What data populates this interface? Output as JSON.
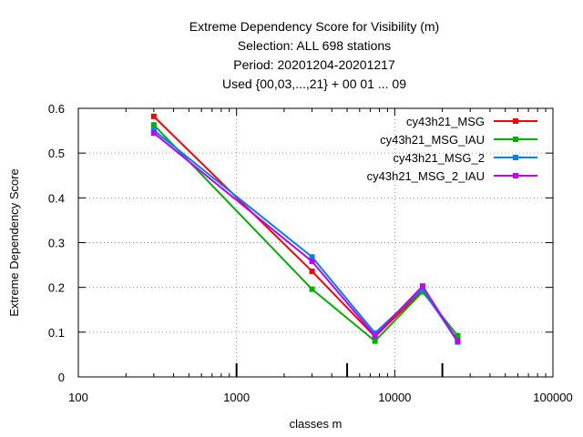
{
  "chart_data": {
    "type": "line",
    "title_lines": [
      "Extreme Dependency Score  for Visibility (m)",
      "Selection: ALL    698 stations",
      "Period: 20201204-20201217",
      "Used {00,03,...,21} + 00 01 ... 09"
    ],
    "xlabel": "classes m",
    "ylabel": "Extreme Dependency Score",
    "x_scale": "log",
    "xlim": [
      100,
      100000
    ],
    "ylim": [
      0,
      0.6
    ],
    "x_ticks": [
      100,
      1000,
      10000,
      100000
    ],
    "x_tick_labels": [
      "100",
      "1000",
      "10000",
      "100000"
    ],
    "y_ticks": [
      0,
      0.1,
      0.2,
      0.3,
      0.4,
      0.5,
      0.6
    ],
    "y_tick_labels": [
      "0",
      "0.1",
      "0.2",
      "0.3",
      "0.4",
      "0.5",
      "0.6"
    ],
    "grid": true,
    "legend_position": "top-right",
    "x": [
      300,
      3000,
      7500,
      15000,
      25000
    ],
    "series": [
      {
        "name": "cy43h21_MSG",
        "color": "#ff0000",
        "values": [
          0.582,
          0.236,
          0.09,
          0.193,
          0.082
        ]
      },
      {
        "name": "cy43h21_MSG_IAU",
        "color": "#00b000",
        "values": [
          0.563,
          0.196,
          0.08,
          0.19,
          0.092
        ]
      },
      {
        "name": "cy43h21_MSG_2",
        "color": "#0080ff",
        "values": [
          0.551,
          0.268,
          0.098,
          0.197,
          0.078
        ]
      },
      {
        "name": "cy43h21_MSG_2_IAU",
        "color": "#c000ff",
        "values": [
          0.545,
          0.258,
          0.092,
          0.203,
          0.08
        ]
      }
    ],
    "sample_marks_x": [
      1000,
      5000,
      20000
    ]
  }
}
